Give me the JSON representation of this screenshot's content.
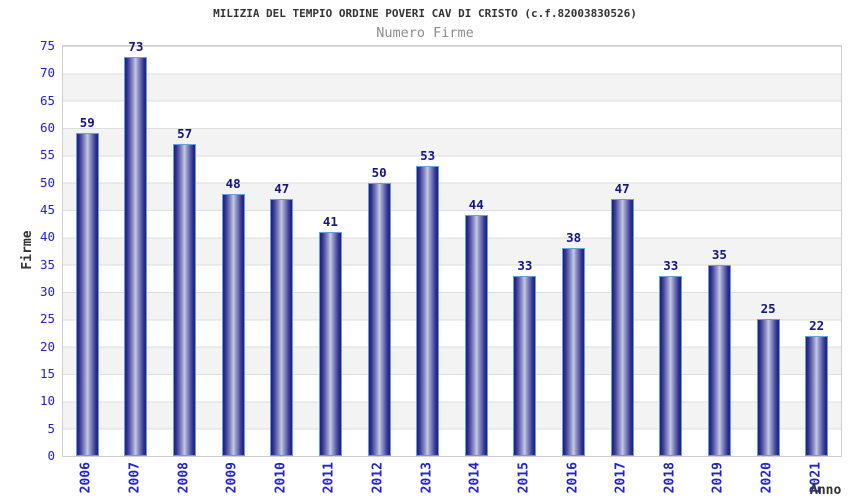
{
  "chart_data": {
    "type": "bar",
    "title": "MILIZIA DEL TEMPIO ORDINE POVERI CAV DI CRISTO (c.f.82003830526)",
    "subtitle": "Numero Firme",
    "xlabel": "Anno",
    "ylabel": "Firme",
    "categories": [
      "2006",
      "2007",
      "2008",
      "2009",
      "2010",
      "2011",
      "2012",
      "2013",
      "2014",
      "2015",
      "2016",
      "2017",
      "2018",
      "2019",
      "2020",
      "2021"
    ],
    "values": [
      59,
      73,
      57,
      48,
      47,
      41,
      50,
      53,
      44,
      33,
      38,
      47,
      33,
      35,
      25,
      22
    ],
    "ylim": [
      0,
      75
    ],
    "ytick_step": 5,
    "grid": "horizontal-bands",
    "legend": "none",
    "colors": {
      "bar_dark": "#1d1d82",
      "bar_mid": "#343492",
      "bar_soft": "#9095c6",
      "bar_light": "#c6cae4",
      "bar_border": "#64a0dc",
      "tick_label": "#2222cc",
      "value_label": "#15157d",
      "title": "#333333",
      "subtitle": "#8c8c8c",
      "band_gray": "#f3f3f3",
      "band_white": "#ffffff",
      "gridline": "#dedede",
      "plot_border": "#cfcfcf"
    }
  }
}
